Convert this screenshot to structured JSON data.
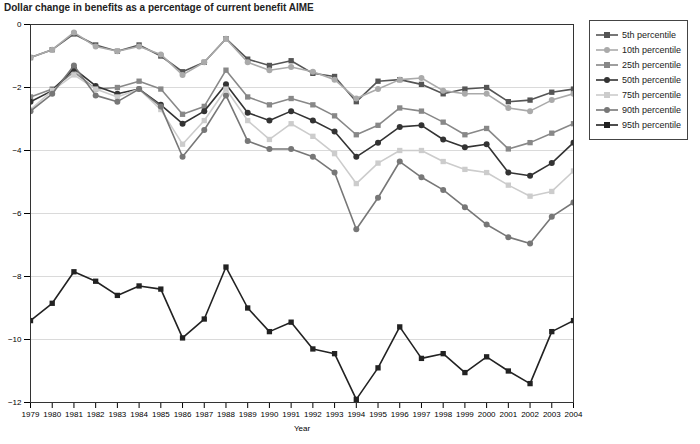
{
  "chart_data": {
    "type": "line",
    "y_label": "Dollar change in benefits as a percentage of current benefit AIME",
    "x_label": "Year",
    "x": [
      1979,
      1980,
      1981,
      1982,
      1983,
      1984,
      1985,
      1986,
      1987,
      1988,
      1989,
      1990,
      1991,
      1992,
      1993,
      1994,
      1995,
      1996,
      1997,
      1998,
      1999,
      2000,
      2001,
      2002,
      2003,
      2004
    ],
    "xlim": [
      1979,
      2004
    ],
    "xticks": [
      1979,
      1980,
      1981,
      1982,
      1983,
      1984,
      1985,
      1986,
      1987,
      1988,
      1989,
      1990,
      1991,
      1992,
      1993,
      1994,
      1995,
      1996,
      1997,
      1998,
      1999,
      2000,
      2001,
      2002,
      2003,
      2004
    ],
    "ylim": [
      -12,
      0
    ],
    "yticks": [
      -12,
      -10,
      -8,
      -6,
      -4,
      -2,
      0
    ],
    "grid": true,
    "legend": "right",
    "series": [
      {
        "name": "5th percentile",
        "color": "#555555",
        "marker": "square",
        "values": [
          -1.05,
          -0.8,
          -0.3,
          -0.65,
          -0.85,
          -0.65,
          -1.0,
          -1.5,
          -1.2,
          -0.45,
          -1.1,
          -1.3,
          -1.15,
          -1.55,
          -1.65,
          -2.45,
          -1.8,
          -1.75,
          -1.9,
          -2.2,
          -2.05,
          -2.0,
          -2.45,
          -2.4,
          -2.15,
          -2.05
        ]
      },
      {
        "name": "10th percentile",
        "color": "#aaaaaa",
        "marker": "circle",
        "values": [
          -1.05,
          -0.8,
          -0.25,
          -0.7,
          -0.85,
          -0.7,
          -0.95,
          -1.6,
          -1.2,
          -0.45,
          -1.2,
          -1.45,
          -1.35,
          -1.5,
          -1.75,
          -2.35,
          -2.05,
          -1.75,
          -1.7,
          -2.1,
          -2.2,
          -2.2,
          -2.65,
          -2.75,
          -2.4,
          -2.2
        ]
      },
      {
        "name": "25th percentile",
        "color": "#888888",
        "marker": "square",
        "values": [
          -2.3,
          -2.05,
          -1.5,
          -2.05,
          -2.0,
          -1.8,
          -2.05,
          -2.85,
          -2.6,
          -1.45,
          -2.3,
          -2.55,
          -2.35,
          -2.55,
          -2.9,
          -3.5,
          -3.2,
          -2.65,
          -2.75,
          -3.1,
          -3.5,
          -3.3,
          -3.95,
          -3.75,
          -3.45,
          -3.15
        ]
      },
      {
        "name": "50th percentile",
        "color": "#333333",
        "marker": "circle",
        "values": [
          -2.45,
          -2.1,
          -1.4,
          -1.95,
          -2.2,
          -2.05,
          -2.55,
          -3.15,
          -2.75,
          -1.9,
          -2.8,
          -3.05,
          -2.75,
          -3.05,
          -3.4,
          -4.2,
          -3.75,
          -3.25,
          -3.2,
          -3.65,
          -3.9,
          -3.8,
          -4.7,
          -4.8,
          -4.4,
          -3.75
        ]
      },
      {
        "name": "75th percentile",
        "color": "#cccccc",
        "marker": "square",
        "values": [
          -2.7,
          -2.1,
          -1.6,
          -2.05,
          -2.3,
          -2.05,
          -2.7,
          -3.8,
          -3.05,
          -2.05,
          -3.05,
          -3.65,
          -3.15,
          -3.55,
          -4.1,
          -5.05,
          -4.4,
          -4.0,
          -4.0,
          -4.35,
          -4.6,
          -4.7,
          -5.1,
          -5.45,
          -5.3,
          -4.65
        ]
      },
      {
        "name": "90th percentile",
        "color": "#777777",
        "marker": "circle",
        "values": [
          -2.75,
          -2.2,
          -1.3,
          -2.25,
          -2.45,
          -2.05,
          -2.6,
          -4.2,
          -3.35,
          -2.25,
          -3.7,
          -3.95,
          -3.95,
          -4.2,
          -4.7,
          -6.5,
          -5.5,
          -4.35,
          -4.85,
          -5.25,
          -5.8,
          -6.35,
          -6.75,
          -6.95,
          -6.1,
          -5.65
        ]
      },
      {
        "name": "95th percentile",
        "color": "#222222",
        "marker": "square",
        "values": [
          -9.4,
          -8.85,
          -7.85,
          -8.15,
          -8.6,
          -8.3,
          -8.4,
          -9.95,
          -9.35,
          -7.7,
          -9.0,
          -9.75,
          -9.45,
          -10.3,
          -10.45,
          -11.9,
          -10.9,
          -9.6,
          -10.6,
          -10.45,
          -11.05,
          -10.55,
          -11.0,
          -11.4,
          -9.75,
          -9.4
        ]
      }
    ]
  }
}
